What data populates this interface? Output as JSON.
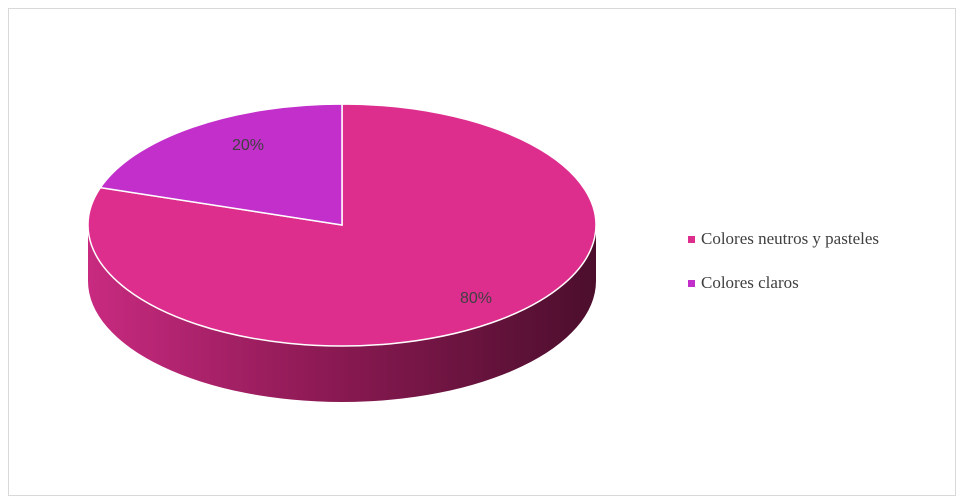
{
  "chart_data": {
    "type": "pie",
    "title": "",
    "categories": [
      "Colores neutros y pasteles",
      "Colores claros"
    ],
    "values": [
      80,
      20
    ],
    "data_labels": [
      "80%",
      "20%"
    ],
    "colors": [
      "#dd2e8e",
      "#c22fcb"
    ],
    "side_colors": [
      "#a61e67",
      "#8f2297"
    ],
    "legend_placement": "right",
    "three_d": true
  }
}
